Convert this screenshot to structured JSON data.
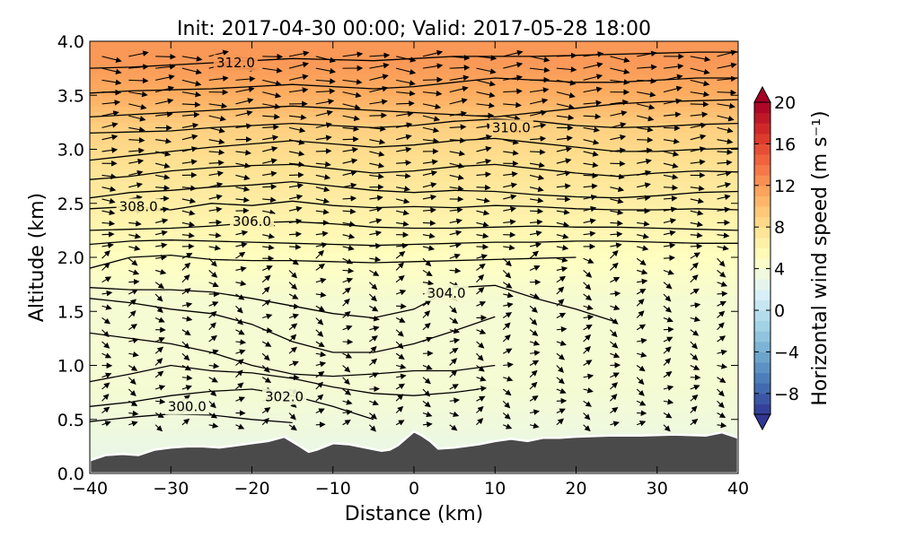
{
  "chart_data": {
    "type": "contour",
    "title": "Init: 2017-04-30 00:00; Valid: 2017-05-28 18:00",
    "xlabel": "Distance (km)",
    "ylabel": "Altitude (km)",
    "xlim": [
      -40,
      40
    ],
    "ylim": [
      0.0,
      4.0
    ],
    "x_ticks": [
      -40,
      -30,
      -20,
      -10,
      0,
      10,
      20,
      30,
      40
    ],
    "x_tick_labels": [
      "−40",
      "−30",
      "−20",
      "−10",
      "0",
      "10",
      "20",
      "30",
      "40"
    ],
    "y_ticks": [
      0.0,
      0.5,
      1.0,
      1.5,
      2.0,
      2.5,
      3.0,
      3.5,
      4.0
    ],
    "y_tick_labels": [
      "0.0",
      "0.5",
      "1.0",
      "1.5",
      "2.0",
      "2.5",
      "3.0",
      "3.5",
      "4.0"
    ],
    "colorbar": {
      "label": "Horizontal wind speed (m s⁻¹)",
      "range": [
        -10,
        20
      ],
      "step": 1,
      "ticks": [
        20,
        16,
        12,
        8,
        4,
        0,
        -4,
        -8
      ],
      "tick_labels": [
        "20",
        "16",
        "12",
        "8",
        "4",
        "0",
        "−4",
        "−8"
      ],
      "extend": "both",
      "colormap": "RdYlBu_r"
    },
    "filled_wind_speed_profile": [
      {
        "z": 0.2,
        "speed": 3
      },
      {
        "z": 0.8,
        "speed": 4
      },
      {
        "z": 1.6,
        "speed": 4
      },
      {
        "z": 2.0,
        "speed": 5
      },
      {
        "z": 2.3,
        "speed": 6
      },
      {
        "z": 2.6,
        "speed": 7
      },
      {
        "z": 2.9,
        "speed": 8
      },
      {
        "z": 3.2,
        "speed": 9
      },
      {
        "z": 3.5,
        "speed": 11
      },
      {
        "z": 3.8,
        "speed": 12
      },
      {
        "z": 4.0,
        "speed": 12
      }
    ],
    "potential_temperature_contours": [
      {
        "theta": 300.0,
        "points": [
          [
            -40,
            0.48
          ],
          [
            -35,
            0.52
          ],
          [
            -30,
            0.55
          ],
          [
            -25,
            0.54
          ],
          [
            -20,
            0.5
          ],
          [
            -15,
            0.47
          ]
        ]
      },
      {
        "theta": 301.0,
        "points": [
          [
            -40,
            0.62
          ],
          [
            -35,
            0.66
          ],
          [
            -30,
            0.72
          ],
          [
            -25,
            0.76
          ],
          [
            -20,
            0.78
          ],
          [
            -15,
            0.72
          ],
          [
            -10,
            0.62
          ],
          [
            -5,
            0.5
          ]
        ]
      },
      {
        "theta": 302.0,
        "points": [
          [
            -40,
            0.85
          ],
          [
            -35,
            0.92
          ],
          [
            -30,
            1.0
          ],
          [
            -25,
            0.95
          ],
          [
            -20,
            0.93
          ],
          [
            -15,
            0.88
          ],
          [
            -10,
            0.8
          ],
          [
            -5,
            0.74
          ],
          [
            0,
            0.72
          ],
          [
            5,
            0.75
          ],
          [
            8,
            0.78
          ]
        ]
      },
      {
        "theta": 303.0,
        "points": [
          [
            -40,
            1.3
          ],
          [
            -35,
            1.25
          ],
          [
            -30,
            1.2
          ],
          [
            -25,
            1.12
          ],
          [
            -20,
            1.0
          ],
          [
            -15,
            0.92
          ],
          [
            -10,
            0.9
          ],
          [
            -5,
            0.92
          ],
          [
            0,
            0.95
          ],
          [
            5,
            0.95
          ],
          [
            10,
            1.0
          ]
        ]
      },
      {
        "theta": 303.5,
        "points": [
          [
            -40,
            1.62
          ],
          [
            -35,
            1.58
          ],
          [
            -30,
            1.52
          ],
          [
            -25,
            1.48
          ],
          [
            -20,
            1.38
          ],
          [
            -15,
            1.22
          ],
          [
            -10,
            1.12
          ],
          [
            -5,
            1.12
          ],
          [
            0,
            1.2
          ],
          [
            5,
            1.32
          ],
          [
            10,
            1.45
          ]
        ]
      },
      {
        "theta": 304.0,
        "points": [
          [
            -40,
            1.72
          ],
          [
            -35,
            1.7
          ],
          [
            -30,
            1.7
          ],
          [
            -25,
            1.68
          ],
          [
            -20,
            1.62
          ],
          [
            -15,
            1.55
          ],
          [
            -10,
            1.48
          ],
          [
            -5,
            1.44
          ],
          [
            0,
            1.52
          ],
          [
            5,
            1.72
          ],
          [
            10,
            1.74
          ],
          [
            15,
            1.62
          ],
          [
            20,
            1.52
          ],
          [
            25,
            1.4
          ]
        ]
      },
      {
        "theta": 305.0,
        "points": [
          [
            -40,
            1.9
          ],
          [
            -35,
            2.0
          ],
          [
            -30,
            2.02
          ],
          [
            -25,
            1.98
          ],
          [
            -20,
            1.97
          ],
          [
            -15,
            1.97
          ],
          [
            -10,
            1.96
          ],
          [
            -5,
            1.95
          ],
          [
            0,
            1.96
          ],
          [
            5,
            1.97
          ],
          [
            10,
            1.98
          ],
          [
            15,
            1.99
          ],
          [
            20,
            2.0
          ]
        ]
      },
      {
        "theta": 305.5,
        "points": [
          [
            -40,
            2.12
          ],
          [
            -35,
            2.15
          ],
          [
            -30,
            2.16
          ],
          [
            -25,
            2.15
          ],
          [
            -20,
            2.14
          ],
          [
            -15,
            2.13
          ],
          [
            -10,
            2.12
          ],
          [
            -5,
            2.11
          ],
          [
            0,
            2.12
          ],
          [
            5,
            2.13
          ],
          [
            10,
            2.14
          ],
          [
            15,
            2.14
          ],
          [
            20,
            2.15
          ],
          [
            25,
            2.15
          ],
          [
            30,
            2.14
          ],
          [
            35,
            2.13
          ],
          [
            40,
            2.13
          ]
        ]
      },
      {
        "theta": 306.0,
        "points": [
          [
            -40,
            2.25
          ],
          [
            -35,
            2.26
          ],
          [
            -30,
            2.27
          ],
          [
            -25,
            2.29
          ],
          [
            -20,
            2.32
          ],
          [
            -15,
            2.33
          ],
          [
            -10,
            2.31
          ],
          [
            -5,
            2.28
          ],
          [
            0,
            2.27
          ],
          [
            5,
            2.27
          ],
          [
            10,
            2.28
          ],
          [
            15,
            2.29
          ],
          [
            20,
            2.28
          ],
          [
            25,
            2.28
          ],
          [
            30,
            2.27
          ],
          [
            35,
            2.26
          ],
          [
            40,
            2.25
          ]
        ]
      },
      {
        "theta": 307.0,
        "points": [
          [
            -40,
            2.45
          ],
          [
            -35,
            2.47
          ],
          [
            -30,
            2.44
          ],
          [
            -25,
            2.5
          ],
          [
            -20,
            2.48
          ],
          [
            -15,
            2.52
          ],
          [
            -10,
            2.48
          ],
          [
            -5,
            2.46
          ],
          [
            0,
            2.47
          ],
          [
            5,
            2.46
          ],
          [
            10,
            2.48
          ],
          [
            15,
            2.47
          ],
          [
            20,
            2.45
          ],
          [
            25,
            2.44
          ],
          [
            30,
            2.44
          ],
          [
            35,
            2.45
          ],
          [
            40,
            2.44
          ]
        ]
      },
      {
        "theta": 308.0,
        "points": [
          [
            -40,
            2.55
          ],
          [
            -35,
            2.6
          ],
          [
            -30,
            2.62
          ],
          [
            -25,
            2.65
          ],
          [
            -20,
            2.67
          ],
          [
            -15,
            2.7
          ],
          [
            -10,
            2.66
          ],
          [
            -5,
            2.62
          ],
          [
            0,
            2.6
          ],
          [
            5,
            2.62
          ],
          [
            10,
            2.61
          ],
          [
            15,
            2.58
          ],
          [
            20,
            2.56
          ],
          [
            25,
            2.55
          ],
          [
            30,
            2.57
          ],
          [
            35,
            2.6
          ],
          [
            40,
            2.61
          ]
        ]
      },
      {
        "theta": 308.5,
        "points": [
          [
            -40,
            2.72
          ],
          [
            -35,
            2.75
          ],
          [
            -30,
            2.8
          ],
          [
            -25,
            2.83
          ],
          [
            -20,
            2.85
          ],
          [
            -15,
            2.86
          ],
          [
            -10,
            2.82
          ],
          [
            -5,
            2.78
          ],
          [
            0,
            2.8
          ],
          [
            5,
            2.84
          ],
          [
            10,
            2.86
          ],
          [
            15,
            2.82
          ],
          [
            20,
            2.78
          ],
          [
            25,
            2.75
          ],
          [
            30,
            2.78
          ],
          [
            35,
            2.8
          ],
          [
            40,
            2.79
          ]
        ]
      },
      {
        "theta": 309.0,
        "points": [
          [
            -40,
            2.9
          ],
          [
            -35,
            2.94
          ],
          [
            -30,
            2.98
          ],
          [
            -25,
            3.02
          ],
          [
            -20,
            3.05
          ],
          [
            -15,
            3.08
          ],
          [
            -10,
            3.05
          ],
          [
            -5,
            3.02
          ],
          [
            0,
            3.04
          ],
          [
            5,
            3.08
          ],
          [
            10,
            3.1
          ],
          [
            15,
            3.06
          ],
          [
            20,
            3.02
          ],
          [
            25,
            2.98
          ],
          [
            30,
            2.98
          ],
          [
            35,
            3.0
          ],
          [
            40,
            3.01
          ]
        ]
      },
      {
        "theta": 309.5,
        "points": [
          [
            -40,
            3.15
          ],
          [
            -35,
            3.16
          ],
          [
            -30,
            3.17
          ],
          [
            -25,
            3.2
          ],
          [
            -20,
            3.22
          ],
          [
            -15,
            3.24
          ],
          [
            -10,
            3.22
          ],
          [
            -5,
            3.2
          ],
          [
            0,
            3.22
          ],
          [
            5,
            3.26
          ],
          [
            10,
            3.28
          ],
          [
            15,
            3.26
          ],
          [
            20,
            3.22
          ],
          [
            25,
            3.2
          ],
          [
            30,
            3.21
          ],
          [
            35,
            3.23
          ],
          [
            40,
            3.24
          ]
        ]
      },
      {
        "theta": 310.0,
        "points": [
          [
            -40,
            3.3
          ],
          [
            -35,
            3.32
          ],
          [
            -30,
            3.34
          ],
          [
            -25,
            3.36
          ],
          [
            -20,
            3.38
          ],
          [
            -15,
            3.4
          ],
          [
            -10,
            3.38
          ],
          [
            -5,
            3.36
          ],
          [
            0,
            3.34
          ],
          [
            5,
            3.32
          ],
          [
            10,
            3.3
          ],
          [
            15,
            3.34
          ],
          [
            20,
            3.38
          ],
          [
            25,
            3.42
          ],
          [
            30,
            3.44
          ],
          [
            35,
            3.45
          ],
          [
            40,
            3.46
          ]
        ]
      },
      {
        "theta": 311.0,
        "points": [
          [
            -40,
            3.52
          ],
          [
            -35,
            3.54
          ],
          [
            -30,
            3.55
          ],
          [
            -25,
            3.56
          ],
          [
            -20,
            3.58
          ],
          [
            -15,
            3.6
          ],
          [
            -10,
            3.58
          ],
          [
            -5,
            3.56
          ],
          [
            0,
            3.58
          ],
          [
            5,
            3.62
          ],
          [
            10,
            3.66
          ],
          [
            15,
            3.64
          ],
          [
            20,
            3.62
          ],
          [
            25,
            3.62
          ],
          [
            30,
            3.64
          ],
          [
            35,
            3.66
          ],
          [
            40,
            3.66
          ]
        ]
      },
      {
        "theta": 312.0,
        "points": [
          [
            -40,
            3.75
          ],
          [
            -35,
            3.76
          ],
          [
            -30,
            3.78
          ],
          [
            -25,
            3.8
          ],
          [
            -20,
            3.82
          ],
          [
            -15,
            3.84
          ],
          [
            -10,
            3.83
          ],
          [
            -5,
            3.82
          ],
          [
            0,
            3.84
          ],
          [
            5,
            3.86
          ],
          [
            10,
            3.86
          ],
          [
            15,
            3.86
          ],
          [
            20,
            3.87
          ],
          [
            25,
            3.88
          ],
          [
            30,
            3.89
          ],
          [
            35,
            3.9
          ],
          [
            40,
            3.9
          ]
        ]
      }
    ],
    "contour_labels": [
      {
        "text": "300.0",
        "x": -28,
        "z": 0.62
      },
      {
        "text": "302.0",
        "x": -16,
        "z": 0.71
      },
      {
        "text": "304.0",
        "x": 4,
        "z": 1.67
      },
      {
        "text": "306.0",
        "x": -20,
        "z": 2.33
      },
      {
        "text": "308.0",
        "x": -34,
        "z": 2.47
      },
      {
        "text": "310.0",
        "x": 12,
        "z": 3.2
      },
      {
        "text": "312.0",
        "x": -22,
        "z": 3.8
      }
    ],
    "terrain_height_km": [
      [
        -40,
        0.12
      ],
      [
        -38,
        0.17
      ],
      [
        -36,
        0.18
      ],
      [
        -34,
        0.17
      ],
      [
        -32,
        0.22
      ],
      [
        -30,
        0.24
      ],
      [
        -28,
        0.25
      ],
      [
        -26,
        0.25
      ],
      [
        -24,
        0.24
      ],
      [
        -22,
        0.26
      ],
      [
        -20,
        0.28
      ],
      [
        -18,
        0.3
      ],
      [
        -16,
        0.34
      ],
      [
        -14,
        0.25
      ],
      [
        -13,
        0.2
      ],
      [
        -12,
        0.22
      ],
      [
        -10,
        0.28
      ],
      [
        -8,
        0.27
      ],
      [
        -6,
        0.24
      ],
      [
        -4,
        0.21
      ],
      [
        -3,
        0.22
      ],
      [
        -2,
        0.26
      ],
      [
        0,
        0.39
      ],
      [
        1,
        0.35
      ],
      [
        2,
        0.3
      ],
      [
        3,
        0.23
      ],
      [
        5,
        0.24
      ],
      [
        8,
        0.27
      ],
      [
        10,
        0.3
      ],
      [
        12,
        0.32
      ],
      [
        14,
        0.3
      ],
      [
        16,
        0.33
      ],
      [
        18,
        0.33
      ],
      [
        20,
        0.34
      ],
      [
        24,
        0.35
      ],
      [
        28,
        0.35
      ],
      [
        32,
        0.36
      ],
      [
        36,
        0.35
      ],
      [
        38,
        0.38
      ],
      [
        40,
        0.33
      ]
    ]
  }
}
